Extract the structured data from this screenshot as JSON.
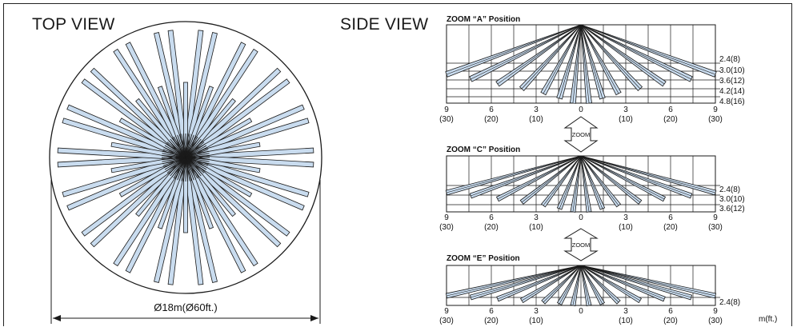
{
  "top_view": {
    "title": "TOP VIEW",
    "diameter_label": "Ø18m(Ø60ft.)"
  },
  "side_view": {
    "title": "SIDE VIEW",
    "unit_label": "m(ft.)",
    "zoom_button_label": "ZOOM",
    "x_ticks": [
      {
        "m": "9",
        "ft": "(30)"
      },
      {
        "m": "6",
        "ft": "(20)"
      },
      {
        "m": "3",
        "ft": "(10)"
      },
      {
        "m": "0",
        "ft": ""
      },
      {
        "m": "3",
        "ft": "(10)"
      },
      {
        "m": "6",
        "ft": "(20)"
      },
      {
        "m": "9",
        "ft": "(30)"
      }
    ],
    "diagrams": [
      {
        "title": "ZOOM “A” Position",
        "range_labels": [
          "2.4(8)",
          "3.0(10)",
          "3.6(12)",
          "4.2(14)",
          "4.8(16)"
        ]
      },
      {
        "title": "ZOOM “C” Position",
        "range_labels": [
          "2.4(8)",
          "3.0(10)",
          "3.6(12)"
        ]
      },
      {
        "title": "ZOOM “E” Position",
        "range_labels": [
          "2.4(8)"
        ]
      }
    ]
  },
  "colors": {
    "beam_fill": "#c9dcef",
    "line": "#1a1a1a"
  }
}
